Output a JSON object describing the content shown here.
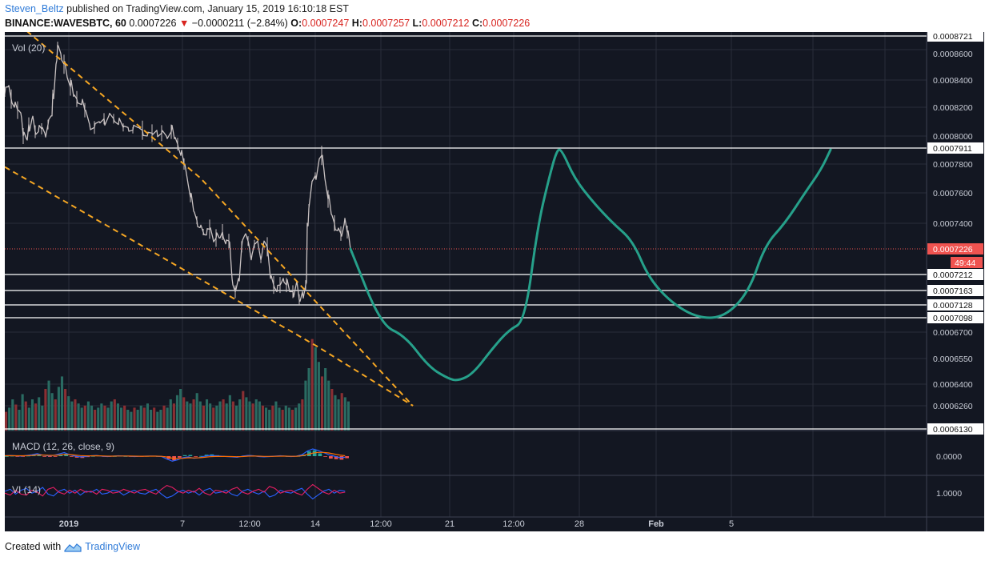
{
  "header": {
    "author": "Steven_Beltz",
    "published_text": "published on TradingView.com, January 15, 2019 16:10:18 EST",
    "symbol": "BINANCE:WAVESBTC, 60",
    "last_price": "0.0007226",
    "change_arrow": "▼",
    "change": "−0.0000211 (−2.84%)",
    "o_label": "O:",
    "o_value": "0.0007247",
    "h_label": "H:",
    "h_value": "0.0007257",
    "l_label": "L:",
    "l_value": "0.0007212",
    "c_label": "C:",
    "c_value": "0.0007226"
  },
  "footer": {
    "created_with": "Created with",
    "brand": "TradingView"
  },
  "colors": {
    "background": "#131722",
    "grid": "#2a2e39",
    "candle": "#c9c2c2",
    "fib_lines": "#ffffff",
    "wedge": "#f5a623",
    "projection": "#26a08a",
    "volume_up": "#2a6b62",
    "volume_down": "#8a2f33",
    "macd_line": "#2962ff",
    "signal_line": "#ff6d00",
    "vi_plus": "#2962ff",
    "vi_minus": "#e91e63",
    "price_tag": "#f05350"
  },
  "chart_data": {
    "type": "candlestick",
    "title": "BINANCE:WAVESBTC, 60",
    "price_tag": "0.0007226",
    "countdown_tag": "49:44",
    "price_axis_labels": [
      "0.0008721",
      "0.0008600",
      "0.0008400",
      "0.0008200",
      "0.0008000",
      "0.0007911",
      "0.0007800",
      "0.0007600",
      "0.0007400",
      "0.0007212",
      "0.0007163",
      "0.0007128",
      "0.0007098",
      "0.0006700",
      "0.0006550",
      "0.0006400",
      "0.0006260",
      "0.0006130"
    ],
    "fib_levels": [
      0.0008721,
      0.0007911,
      0.0007212,
      0.0007163,
      0.0007128,
      0.0007098,
      0.000613
    ],
    "time_axis_labels": [
      "2019",
      "7",
      "12:00",
      "14",
      "12:00",
      "21",
      "12:00",
      "28",
      "Feb",
      "5"
    ],
    "candle_path_points": [
      [
        0,
        0.00083
      ],
      [
        4,
        0.000835
      ],
      [
        8,
        0.000826
      ],
      [
        12,
        0.00082
      ],
      [
        16,
        0.000818
      ],
      [
        20,
        0.000816
      ],
      [
        23,
        0.0008
      ],
      [
        27,
        0.000798
      ],
      [
        30,
        0.000808
      ],
      [
        34,
        0.000812
      ],
      [
        38,
        0.000803
      ],
      [
        42,
        0.000803
      ],
      [
        46,
        0.000805
      ],
      [
        50,
        0.000802
      ],
      [
        54,
        0.000808
      ],
      [
        58,
        0.000814
      ],
      [
        60,
        0.00083
      ],
      [
        64,
        0.000852
      ],
      [
        66,
        0.000866
      ],
      [
        70,
        0.00086
      ],
      [
        74,
        0.000852
      ],
      [
        78,
        0.000842
      ],
      [
        82,
        0.000835
      ],
      [
        86,
        0.000828
      ],
      [
        90,
        0.000826
      ],
      [
        96,
        0.000822
      ],
      [
        100,
        0.000818
      ],
      [
        106,
        0.000808
      ],
      [
        112,
        0.000806
      ],
      [
        118,
        0.00081
      ],
      [
        124,
        0.000812
      ],
      [
        130,
        0.000814
      ],
      [
        136,
        0.000812
      ],
      [
        142,
        0.000808
      ],
      [
        148,
        0.000806
      ],
      [
        154,
        0.000806
      ],
      [
        160,
        0.000804
      ],
      [
        166,
        0.000806
      ],
      [
        172,
        0.000804
      ],
      [
        178,
        0.0008
      ],
      [
        184,
        0.000802
      ],
      [
        190,
        0.000804
      ],
      [
        196,
        0.000802
      ],
      [
        202,
        0.0008
      ],
      [
        208,
        0.000803
      ],
      [
        212,
        0.000798
      ],
      [
        216,
        0.000794
      ],
      [
        220,
        0.000786
      ],
      [
        224,
        0.00078
      ],
      [
        228,
        0.00077
      ],
      [
        232,
        0.000757
      ],
      [
        236,
        0.000748
      ],
      [
        240,
        0.000742
      ],
      [
        244,
        0.000737
      ],
      [
        248,
        0.000734
      ],
      [
        252,
        0.000732
      ],
      [
        256,
        0.000736
      ],
      [
        260,
        0.00073
      ],
      [
        264,
        0.00073
      ],
      [
        268,
        0.00073
      ],
      [
        272,
        0.000734
      ],
      [
        276,
        0.000726
      ],
      [
        280,
        0.000728
      ],
      [
        284,
        0.00072
      ],
      [
        288,
        0.000716
      ],
      [
        292,
        0.00072
      ],
      [
        296,
        0.000724
      ],
      [
        300,
        0.000732
      ],
      [
        304,
        0.000728
      ],
      [
        308,
        0.000722
      ],
      [
        312,
        0.000726
      ],
      [
        316,
        0.000728
      ],
      [
        320,
        0.000722
      ],
      [
        324,
        0.000728
      ],
      [
        328,
        0.000724
      ],
      [
        332,
        0.00072
      ],
      [
        336,
        0.000718
      ],
      [
        340,
        0.000716
      ],
      [
        344,
        0.000718
      ],
      [
        348,
        0.00072
      ],
      [
        352,
        0.000718
      ],
      [
        356,
        0.000716
      ],
      [
        360,
        0.000716
      ],
      [
        364,
        0.000718
      ],
      [
        368,
        0.000714
      ],
      [
        372,
        0.000716
      ],
      [
        376,
        0.000718
      ],
      [
        378,
        0.00074
      ],
      [
        380,
        0.00075
      ],
      [
        384,
        0.000768
      ],
      [
        388,
        0.000772
      ],
      [
        392,
        0.00078
      ],
      [
        396,
        0.000786
      ],
      [
        400,
        0.00077
      ],
      [
        404,
        0.000756
      ],
      [
        408,
        0.000746
      ],
      [
        412,
        0.00074
      ],
      [
        416,
        0.000735
      ],
      [
        420,
        0.000733
      ],
      [
        424,
        0.000739
      ],
      [
        428,
        0.000734
      ],
      [
        432,
        0.0007226
      ]
    ],
    "wedge_upper": [
      [
        0,
        0.00089
      ],
      [
        245,
        0.00077
      ],
      [
        510,
        0.000626
      ]
    ],
    "wedge_lower": [
      [
        0,
        0.000778
      ],
      [
        390,
        0.000662
      ],
      [
        510,
        0.000626
      ]
    ],
    "projection_points": [
      [
        432,
        0.0007226
      ],
      [
        470,
        0.00069
      ],
      [
        500,
        0.000668
      ],
      [
        530,
        0.00065
      ],
      [
        555,
        0.000643
      ],
      [
        567,
        0.000642
      ],
      [
        585,
        0.000646
      ],
      [
        610,
        0.000661
      ],
      [
        630,
        0.000676
      ],
      [
        650,
        0.0007
      ],
      [
        666,
        0.000738
      ],
      [
        680,
        0.00077
      ],
      [
        690,
        0.00079
      ],
      [
        696,
        0.00079
      ],
      [
        712,
        0.00077
      ],
      [
        735,
        0.000754
      ],
      [
        760,
        0.00074
      ],
      [
        785,
        0.000728
      ],
      [
        805,
        0.00072
      ],
      [
        835,
        0.000713
      ],
      [
        868,
        0.000708
      ],
      [
        900,
        0.00071
      ],
      [
        930,
        0.000716
      ],
      [
        950,
        0.000725
      ],
      [
        975,
        0.00074
      ],
      [
        1000,
        0.00076
      ],
      [
        1020,
        0.000776
      ],
      [
        1032,
        0.00079
      ]
    ],
    "volume": {
      "label": "Vol (20)",
      "values": [
        0.18,
        0.22,
        0.3,
        0.25,
        0.2,
        0.35,
        0.28,
        0.22,
        0.3,
        0.26,
        0.32,
        0.24,
        0.4,
        0.48,
        0.36,
        0.3,
        0.42,
        0.52,
        0.4,
        0.33,
        0.28,
        0.3,
        0.26,
        0.22,
        0.24,
        0.28,
        0.24,
        0.2,
        0.22,
        0.26,
        0.24,
        0.22,
        0.28,
        0.3,
        0.26,
        0.22,
        0.24,
        0.2,
        0.18,
        0.22,
        0.2,
        0.24,
        0.22,
        0.26,
        0.2,
        0.22,
        0.18,
        0.2,
        0.24,
        0.22,
        0.3,
        0.26,
        0.34,
        0.4,
        0.32,
        0.28,
        0.26,
        0.3,
        0.36,
        0.28,
        0.24,
        0.3,
        0.26,
        0.22,
        0.24,
        0.28,
        0.3,
        0.26,
        0.34,
        0.28,
        0.24,
        0.3,
        0.38,
        0.32,
        0.28,
        0.26,
        0.3,
        0.28,
        0.24,
        0.22,
        0.2,
        0.24,
        0.28,
        0.22,
        0.2,
        0.24,
        0.22,
        0.2,
        0.22,
        0.26,
        0.3,
        0.48,
        0.6,
        0.88,
        0.8,
        0.66,
        0.52,
        0.6,
        0.48,
        0.4,
        0.34,
        0.3,
        0.36,
        0.32,
        0.28
      ]
    },
    "macd": {
      "label": "MACD (12, 26, close, 9)",
      "axis_label": "0.0000",
      "macd_line": [
        0.05,
        0.1,
        0.05,
        0.0,
        0.1,
        0.2,
        0.35,
        0.15,
        0.05,
        0.1,
        0.3,
        0.5,
        0.2,
        0.0,
        -0.1,
        -0.05,
        0.05,
        0.1,
        0.0,
        -0.05,
        0.0,
        0.05,
        0.02,
        0.0,
        -0.05,
        -0.02,
        0.0,
        0.02,
        0.0,
        -0.05,
        -0.4,
        -0.7,
        -0.5,
        -0.2,
        -0.1,
        -0.3,
        -0.2,
        0.0,
        0.1,
        0.05,
        0.0,
        -0.05,
        -0.1,
        -0.15,
        0.0,
        0.1,
        0.05,
        -0.05,
        -0.1,
        -0.05,
        0.0,
        0.05,
        0.0,
        -0.05,
        0.0,
        0.2,
        0.7,
        1.0,
        0.8,
        0.5,
        0.2,
        0.0,
        -0.2,
        -0.15
      ],
      "signal_line": [
        0.05,
        0.07,
        0.06,
        0.05,
        0.06,
        0.1,
        0.18,
        0.16,
        0.12,
        0.11,
        0.16,
        0.25,
        0.22,
        0.15,
        0.08,
        0.04,
        0.04,
        0.05,
        0.03,
        0.0,
        0.0,
        0.02,
        0.02,
        0.01,
        0.0,
        -0.01,
        -0.01,
        0.0,
        0.0,
        -0.02,
        -0.12,
        -0.28,
        -0.35,
        -0.3,
        -0.22,
        -0.24,
        -0.22,
        -0.15,
        -0.08,
        -0.04,
        -0.03,
        -0.04,
        -0.05,
        -0.08,
        -0.05,
        0.0,
        0.02,
        0.0,
        -0.03,
        -0.03,
        -0.02,
        0.0,
        0.0,
        -0.02,
        -0.01,
        0.05,
        0.22,
        0.42,
        0.52,
        0.52,
        0.44,
        0.3,
        0.15,
        0.05
      ],
      "histogram": [
        0.0,
        0.03,
        -0.01,
        -0.05,
        0.04,
        0.1,
        0.17,
        -0.01,
        -0.07,
        -0.01,
        0.14,
        0.25,
        -0.02,
        -0.15,
        -0.18,
        -0.09,
        0.01,
        0.05,
        -0.03,
        -0.05,
        0.0,
        0.03,
        0.0,
        -0.01,
        -0.05,
        -0.01,
        0.01,
        0.02,
        0.0,
        -0.03,
        -0.28,
        -0.42,
        -0.15,
        0.1,
        0.12,
        -0.06,
        0.02,
        0.15,
        0.18,
        0.09,
        0.03,
        -0.01,
        -0.05,
        -0.07,
        0.05,
        0.1,
        0.03,
        -0.05,
        -0.07,
        -0.02,
        0.02,
        0.05,
        0.0,
        -0.03,
        0.01,
        0.15,
        0.48,
        0.58,
        0.28,
        -0.02,
        -0.24,
        -0.3,
        -0.35,
        -0.2
      ]
    },
    "vi": {
      "label": "VI (14)",
      "axis_label": "1.0000",
      "vi_plus": [
        0.1,
        0.3,
        -0.2,
        0.2,
        0.4,
        -0.1,
        0.1,
        0.5,
        -0.2,
        -0.4,
        0.1,
        0.3,
        -0.1,
        0.2,
        -0.3,
        0.1,
        0.0,
        0.3,
        -0.2,
        -0.1,
        0.2,
        0.1,
        -0.3,
        0.0,
        0.2,
        -0.1,
        -0.2,
        0.1,
        0.3,
        -0.2,
        -0.6,
        -0.4,
        0.0,
        0.2,
        -0.1,
        0.1,
        -0.3,
        0.2,
        0.4,
        -0.1,
        0.0,
        0.2,
        -0.2,
        -0.4,
        0.1,
        0.3,
        0.0,
        -0.2,
        0.1,
        -0.5,
        -0.3,
        0.2,
        0.0,
        -0.1,
        0.2,
        0.4,
        -0.2,
        -0.7,
        -0.3,
        0.1,
        0.3,
        -0.1,
        0.2,
        0.1
      ],
      "vi_minus": [
        -0.1,
        -0.3,
        0.2,
        -0.2,
        -0.3,
        0.2,
        0.0,
        -0.4,
        0.3,
        0.5,
        0.0,
        -0.2,
        0.2,
        -0.1,
        0.3,
        0.0,
        0.1,
        -0.2,
        0.3,
        0.2,
        -0.1,
        0.0,
        0.3,
        0.1,
        -0.1,
        0.2,
        0.3,
        0.0,
        -0.2,
        0.3,
        0.7,
        0.5,
        0.1,
        -0.1,
        0.2,
        0.0,
        0.4,
        -0.1,
        -0.3,
        0.2,
        0.1,
        -0.1,
        0.3,
        0.5,
        0.0,
        -0.2,
        0.1,
        0.3,
        0.0,
        0.6,
        0.4,
        -0.1,
        0.1,
        0.2,
        -0.1,
        -0.3,
        0.3,
        0.8,
        0.4,
        0.0,
        -0.2,
        0.2,
        -0.1,
        0.0
      ]
    }
  }
}
